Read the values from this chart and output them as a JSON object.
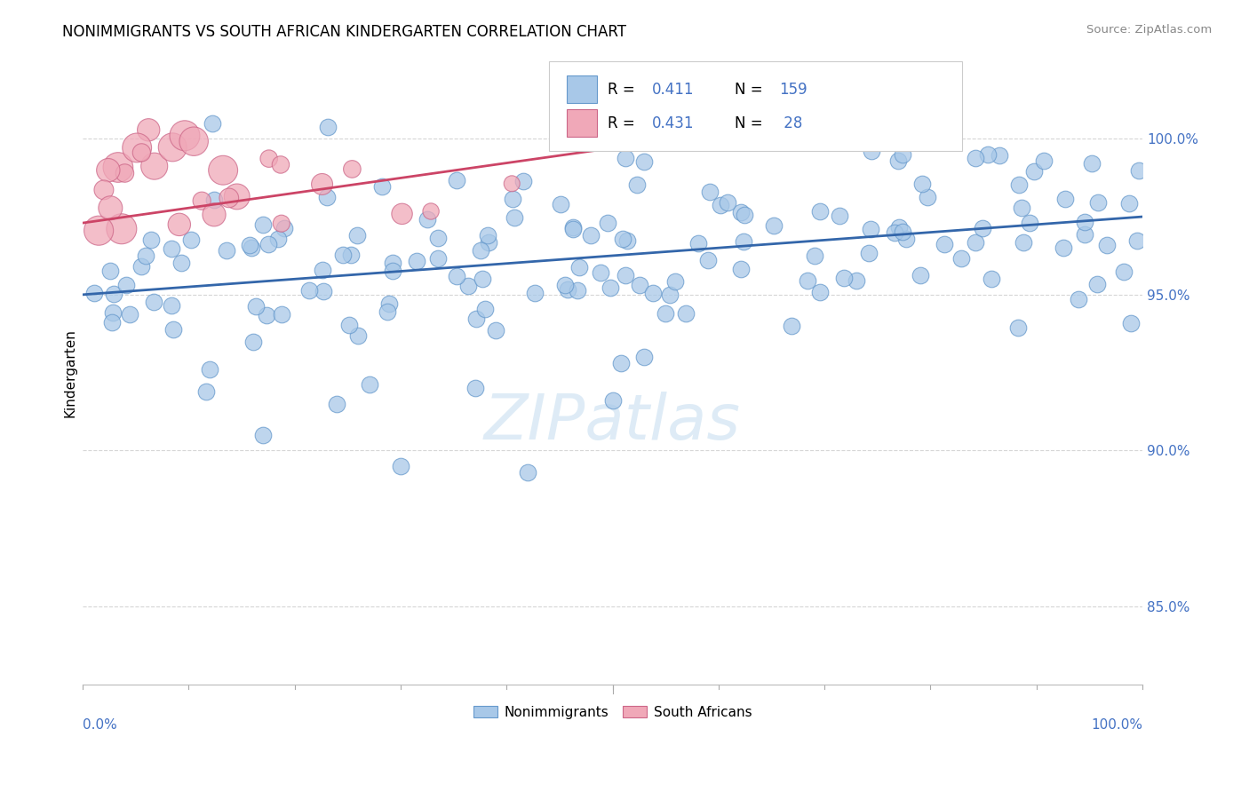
{
  "title": "NONIMMIGRANTS VS SOUTH AFRICAN KINDERGARTEN CORRELATION CHART",
  "source": "Source: ZipAtlas.com",
  "ylabel": "Kindergarten",
  "blue_R": 0.411,
  "blue_N": 159,
  "pink_R": 0.431,
  "pink_N": 28,
  "blue_color": "#A8C8E8",
  "blue_edge_color": "#6699CC",
  "pink_color": "#F0A8B8",
  "pink_edge_color": "#CC6688",
  "blue_line_color": "#3366AA",
  "pink_line_color": "#CC4466",
  "watermark_color": "#C8DFF0",
  "background_color": "#FFFFFF",
  "grid_color": "#CCCCCC",
  "tick_color": "#4472C4",
  "xlim": [
    0.0,
    1.0
  ],
  "ylim": [
    0.825,
    1.025
  ],
  "yticks": [
    0.85,
    0.9,
    0.95,
    1.0
  ],
  "ytick_labels": [
    "85.0%",
    "90.0%",
    "95.0%",
    "100.0%"
  ],
  "blue_trend_x": [
    0.0,
    1.0
  ],
  "blue_trend_y": [
    0.95,
    0.975
  ],
  "pink_trend_x": [
    0.0,
    0.52
  ],
  "pink_trend_y": [
    0.973,
    0.998
  ]
}
